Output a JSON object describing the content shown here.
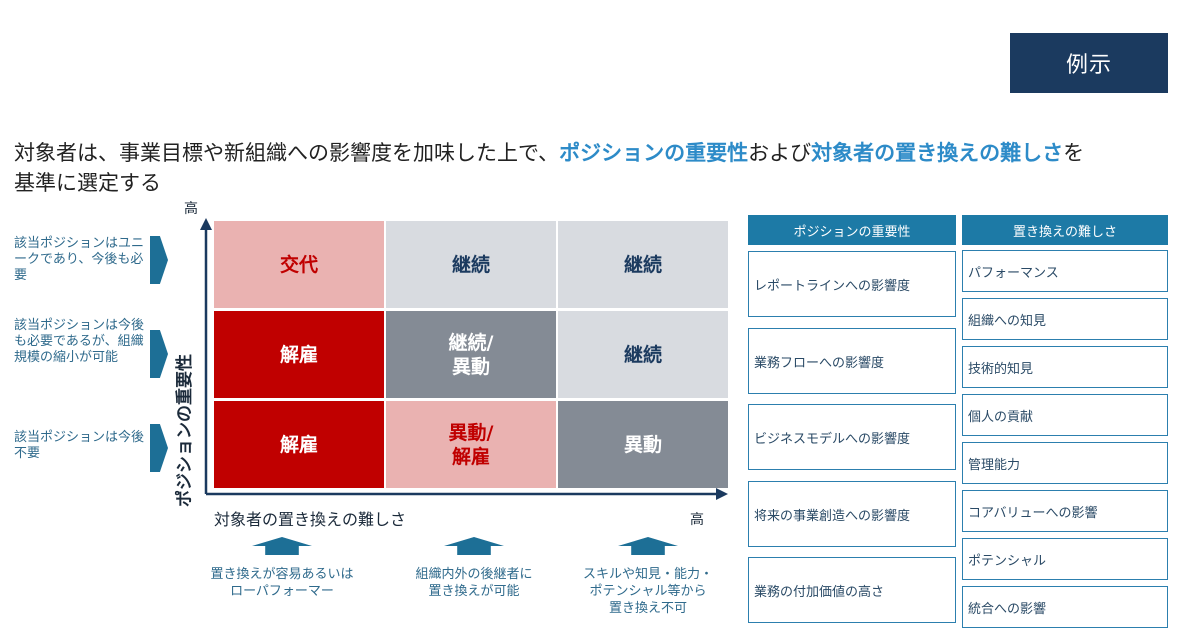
{
  "badge": "例示",
  "headline": {
    "part1": "対象者は、事業目標や新組織への影響度を加味した上で、",
    "highlight1": "ポジションの重要性",
    "part2": "および",
    "highlight2": "対象者の置き換えの難しさ",
    "part3": "を",
    "line2": "基準に選定する"
  },
  "y_axis": {
    "title": "ポジションの重要性",
    "high_label": "高"
  },
  "x_axis": {
    "title": "対象者の置き換えの難しさ",
    "high_label": "高"
  },
  "row_labels": [
    "該当ポジションはユニークであり、今後も必要",
    "該当ポジションは今後も必要であるが、組織規模の縮小が可能",
    "該当ポジションは今後不要"
  ],
  "matrix": [
    [
      "交代",
      "継続",
      "継続"
    ],
    [
      "解雇",
      "継続/\n異動",
      "継続"
    ],
    [
      "解雇",
      "異動/\n解雇",
      "異動"
    ]
  ],
  "column_notes": [
    "置き換えが容易あるいは\nローパフォーマー",
    "組織内外の後継者に\n置き換えが可能",
    "スキルや知見・能力・\nポテンシャル等から\n置き換え不可"
  ],
  "colors": {
    "dark_red": "#c00000",
    "light_pink": "#eab2b1",
    "light_gray": "#d8dbe0",
    "dark_gray": "#848b95",
    "navy": "#1b3a5f",
    "panel_blue": "#1d7aa6"
  },
  "panels": {
    "importance": {
      "header": "ポジションの重要性",
      "items": [
        "レポートラインへの影響度",
        "業務フローへの影響度",
        "ビジネスモデルへの影響度",
        "将来の事業創造への影響度",
        "業務の付加価値の高さ"
      ]
    },
    "difficulty": {
      "header": "置き換えの難しさ",
      "items": [
        "パフォーマンス",
        "組織への知見",
        "技術的知見",
        "個人の貢献",
        "管理能力",
        "コアバリューへの影響",
        "ポテンシャル",
        "統合への影響"
      ]
    }
  }
}
